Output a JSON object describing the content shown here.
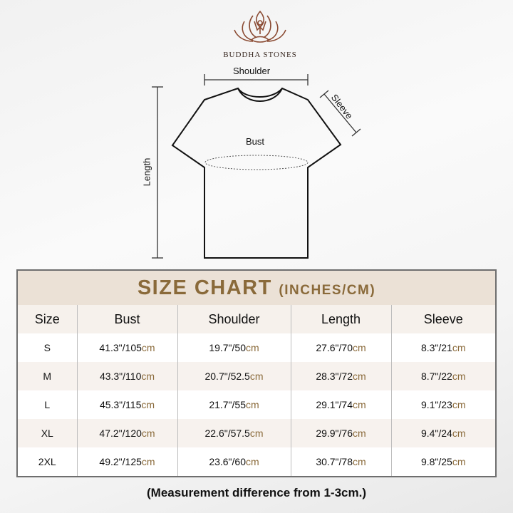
{
  "brand": {
    "name": "BUDDHA STONES",
    "logo_icon": "lotus-meditation-icon",
    "color": "#8a4a32"
  },
  "diagram": {
    "shoulder": "Shoulder",
    "sleeve": "Sleeve",
    "bust": "Bust",
    "length": "Length"
  },
  "chart": {
    "title": "SIZE CHART",
    "unit": "(INCHES/CM)",
    "accent_color": "#8a6a3a",
    "columns": [
      "Size",
      "Bust",
      "Shoulder",
      "Length",
      "Sleeve"
    ],
    "rows": [
      {
        "size": "S",
        "bust": "41.3\"/105",
        "shoulder": "19.7\"/50",
        "length": "27.6\"/70",
        "sleeve": "8.3\"/21"
      },
      {
        "size": "M",
        "bust": "43.3\"/110",
        "shoulder": "20.7\"/52.5",
        "length": "28.3\"/72",
        "sleeve": "8.7\"/22"
      },
      {
        "size": "L",
        "bust": "45.3\"/115",
        "shoulder": "21.7\"/55",
        "length": "29.1\"/74",
        "sleeve": "9.1\"/23"
      },
      {
        "size": "XL",
        "bust": "47.2\"/120",
        "shoulder": "22.6\"/57.5",
        "length": "29.9\"/76",
        "sleeve": "9.4\"/24"
      },
      {
        "size": "2XL",
        "bust": "49.2\"/125",
        "shoulder": "23.6\"/60",
        "length": "30.7\"/78",
        "sleeve": "9.8\"/25"
      }
    ],
    "cm_suffix": "cm"
  },
  "note": "(Measurement difference from 1-3cm.)"
}
